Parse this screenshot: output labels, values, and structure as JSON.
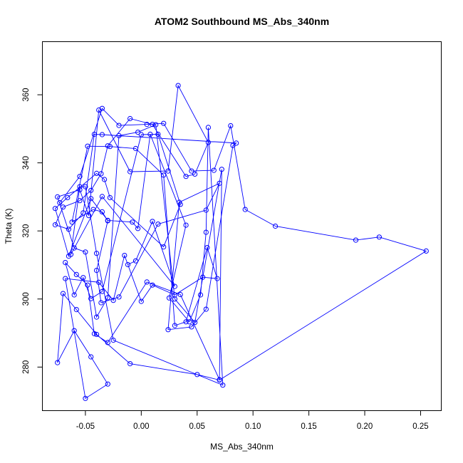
{
  "chart_data": {
    "type": "line",
    "title": "ATOM2 Southbound MS_Abs_340nm",
    "xlabel": "MS_Abs_340nm",
    "ylabel": "Theta (K)",
    "xlim": [
      -0.0885,
      0.2685
    ],
    "ylim": [
      267.2,
      375.6
    ],
    "x_ticks": [
      -0.05,
      0.0,
      0.05,
      0.1,
      0.15,
      0.2,
      0.25
    ],
    "x_tick_labels": [
      "-0.05",
      "0.00",
      "0.05",
      "0.10",
      "0.15",
      "0.20",
      "0.25"
    ],
    "y_ticks": [
      280,
      300,
      320,
      340,
      360
    ],
    "y_tick_labels": [
      "280",
      "300",
      "320",
      "340",
      "360"
    ],
    "grid": false,
    "legend": "none",
    "colors": {
      "series": "#0000ff",
      "axis": "#000000",
      "background": "#ffffff"
    },
    "markers": "open-circle",
    "series": [
      {
        "x": [
          -0.073,
          -0.055,
          -0.035,
          -0.02,
          0.005,
          0.02,
          0.045,
          0.065,
          0.08,
          0.093,
          0.12,
          0.192,
          0.213,
          0.255,
          0.07,
          0.05,
          -0.01,
          -0.04,
          -0.058,
          -0.07,
          -0.075,
          -0.06,
          -0.045,
          -0.03,
          -0.05,
          -0.068,
          -0.038,
          -0.025,
          -0.015,
          0.0,
          0.01,
          0.03,
          0.055,
          0.068,
          0.059,
          0.04,
          0.03,
          0.02,
          -0.005,
          -0.028,
          -0.048,
          -0.062,
          -0.043,
          -0.035,
          -0.03,
          -0.04,
          -0.036,
          -0.02,
          0.015,
          0.058,
          0.07,
          0.034,
          0.024,
          0.045,
          0.058,
          0.082,
          0.085,
          -0.035,
          -0.042,
          -0.052,
          -0.065,
          -0.077,
          -0.07,
          -0.055,
          -0.045,
          -0.036,
          -0.03,
          -0.01,
          0.01,
          0.04,
          0.048,
          0.06,
          0.033,
          0.024,
          -0.01,
          -0.038,
          -0.047,
          -0.055,
          -0.075,
          -0.06,
          -0.05,
          -0.04,
          -0.03,
          -0.02,
          -0.003,
          0.013,
          0.03,
          0.048,
          0.072,
          0.07,
          0.035,
          0.005,
          -0.03,
          -0.042,
          -0.048,
          -0.058,
          -0.068,
          -0.06,
          -0.052,
          -0.045,
          -0.035,
          0.0,
          0.015,
          0.035,
          0.02,
          -0.028,
          -0.033,
          -0.04,
          -0.066,
          -0.077,
          -0.065,
          -0.045,
          -0.03,
          -0.008,
          -0.003,
          0.008,
          0.04,
          0.025,
          0.043,
          0.053,
          0.058,
          0.06,
          0.073,
          -0.025,
          -0.04,
          -0.05,
          -0.055,
          -0.063,
          -0.035,
          0.03,
          0.01,
          -0.005,
          -0.012
        ],
        "y": [
          328.3,
          336.0,
          356.0,
          351.0,
          351.3,
          351.6,
          337.6,
          337.8,
          350.9,
          326.3,
          321.4,
          317.3,
          318.2,
          314.1,
          276.2,
          277.8,
          281.0,
          289.6,
          296.9,
          301.6,
          281.3,
          290.7,
          283.0,
          275.0,
          270.8,
          306.0,
          304.9,
          299.6,
          312.8,
          299.3,
          304.1,
          301.2,
          306.4,
          306.0,
          315.1,
          293.3,
          292.2,
          336.4,
          344.2,
          344.8,
          344.9,
          322.6,
          326.3,
          325.6,
          323.0,
          308.4,
          298.9,
          300.6,
          322.0,
          326.1,
          334.0,
          328.4,
          291.0,
          291.8,
          297.0,
          345.1,
          345.8,
          348.3,
          348.4,
          325.3,
          320.5,
          321.8,
          327.0,
          328.9,
          331.9,
          336.8,
          345.0,
          353.0,
          351.3,
          336.0,
          336.7,
          346.0,
          362.7,
          337.6,
          337.4,
          355.5,
          324.5,
          332.1,
          330.0,
          315.0,
          313.8,
          294.7,
          300.4,
          348.0,
          349.0,
          351.2,
          300.0,
          293.1,
          338.1,
          276.3,
          301.3,
          305.0,
          287.2,
          289.8,
          304.1,
          307.2,
          310.7,
          301.2,
          306.3,
          300.1,
          302.2,
          348.3,
          348.4,
          327.8,
          315.3,
          329.8,
          335.1,
          336.9,
          329.8,
          326.6,
          312.6,
          329.5,
          323.1,
          322.6,
          320.7,
          348.4,
          321.7,
          300.3,
          293.3,
          301.2,
          319.6,
          350.4,
          274.7,
          287.9,
          313.4,
          333.0,
          333.0,
          313.1,
          330.1,
          303.7,
          322.8,
          311.2,
          310.1
        ]
      }
    ]
  }
}
